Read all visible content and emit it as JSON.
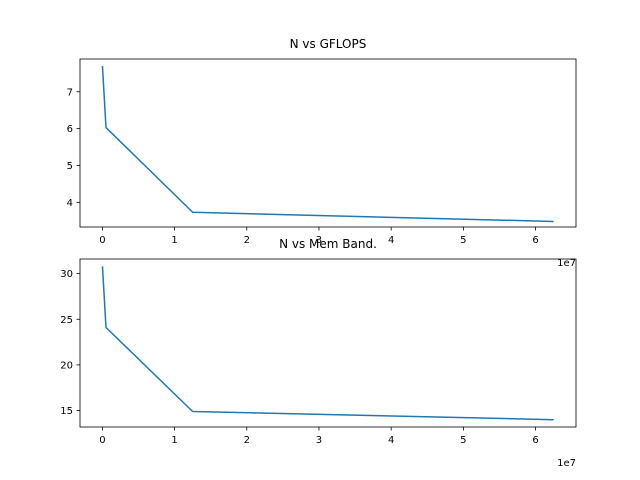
{
  "chart_data": [
    {
      "type": "line",
      "title": "N vs GFLOPS",
      "xlabel": "",
      "ylabel": "",
      "x_offset_label": "1e7",
      "xlim": [
        -3100000.0,
        65600000.0
      ],
      "ylim": [
        3.33,
        7.89
      ],
      "xticks": [
        0,
        1,
        2,
        3,
        4,
        5,
        6
      ],
      "yticks": [
        4,
        5,
        6,
        7
      ],
      "grid": false,
      "series": [
        {
          "color": "#1f77b4",
          "x": [
            10000,
            500000,
            12500000,
            62500000
          ],
          "y": [
            7.7,
            6.03,
            3.73,
            3.48
          ]
        }
      ]
    },
    {
      "type": "line",
      "title": "N vs Mem Band.",
      "xlabel": "",
      "ylabel": "",
      "x_offset_label": "1e7",
      "xlim": [
        -3100000.0,
        65600000.0
      ],
      "ylim": [
        13.2,
        31.6
      ],
      "xticks": [
        0,
        1,
        2,
        3,
        4,
        5,
        6
      ],
      "yticks": [
        15,
        20,
        25,
        30
      ],
      "grid": false,
      "series": [
        {
          "color": "#1f77b4",
          "x": [
            10000,
            500000,
            12500000,
            62500000
          ],
          "y": [
            30.8,
            24.1,
            14.9,
            14.0
          ]
        }
      ]
    }
  ]
}
